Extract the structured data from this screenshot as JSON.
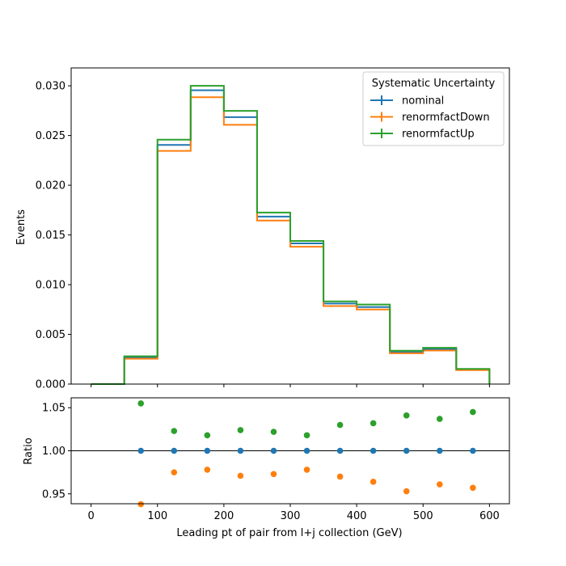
{
  "chart_data": [
    {
      "type": "step",
      "panel": "main",
      "xlabel": "",
      "ylabel": "Events",
      "xlim": [
        -30,
        630
      ],
      "ylim": [
        0,
        0.0318
      ],
      "yticks": [
        0.0,
        0.005,
        0.01,
        0.015,
        0.02,
        0.025,
        0.03
      ],
      "ytick_labels": [
        "0.000",
        "0.005",
        "0.010",
        "0.015",
        "0.020",
        "0.025",
        "0.030"
      ],
      "xticks": [
        0,
        100,
        200,
        300,
        400,
        500,
        600
      ],
      "bin_edges": [
        0,
        50,
        100,
        150,
        200,
        250,
        300,
        350,
        400,
        450,
        500,
        550,
        600
      ],
      "legend": {
        "title": "Systematic Uncertainty",
        "placement": "upper-right"
      },
      "series": [
        {
          "name": "nominal",
          "color": "#1f77b4",
          "values": [
            0.0,
            0.00268,
            0.02405,
            0.02955,
            0.02685,
            0.01685,
            0.01415,
            0.0081,
            0.00775,
            0.0032,
            0.0035,
            0.00145
          ]
        },
        {
          "name": "renormfactDown",
          "color": "#ff7f0e",
          "values": [
            0.0,
            0.00255,
            0.02345,
            0.02885,
            0.02608,
            0.01645,
            0.01382,
            0.00785,
            0.0075,
            0.0031,
            0.00338,
            0.0014
          ]
        },
        {
          "name": "renormfactUp",
          "color": "#2ca02c",
          "values": [
            0.0,
            0.0028,
            0.02458,
            0.03,
            0.02748,
            0.01725,
            0.0144,
            0.00832,
            0.008,
            0.00335,
            0.00365,
            0.00152
          ]
        }
      ]
    },
    {
      "type": "scatter",
      "panel": "ratio",
      "xlabel": "Leading pt of pair from l+j collection (GeV)",
      "ylabel": "Ratio",
      "xlim": [
        -30,
        630
      ],
      "ylim": [
        0.9385,
        1.0615
      ],
      "yticks": [
        0.95,
        1.0,
        1.05
      ],
      "ytick_labels": [
        "0.95",
        "1.00",
        "1.05"
      ],
      "xticks": [
        0,
        100,
        200,
        300,
        400,
        500,
        600
      ],
      "xtick_labels": [
        "0",
        "100",
        "200",
        "300",
        "400",
        "500",
        "600"
      ],
      "reference_line": 1.0,
      "x": [
        75,
        125,
        175,
        225,
        275,
        325,
        375,
        425,
        475,
        525,
        575
      ],
      "series": [
        {
          "name": "nominal",
          "color": "#1f77b4",
          "values": [
            1.0,
            1.0,
            1.0,
            1.0,
            1.0,
            1.0,
            1.0,
            1.0,
            1.0,
            1.0,
            1.0
          ]
        },
        {
          "name": "renormfactDown",
          "color": "#ff7f0e",
          "values": [
            0.938,
            0.975,
            0.978,
            0.971,
            0.973,
            0.978,
            0.97,
            0.964,
            0.953,
            0.961,
            0.957
          ]
        },
        {
          "name": "renormfactUp",
          "color": "#2ca02c",
          "values": [
            1.055,
            1.023,
            1.018,
            1.024,
            1.022,
            1.018,
            1.03,
            1.032,
            1.041,
            1.037,
            1.045
          ]
        }
      ]
    }
  ]
}
